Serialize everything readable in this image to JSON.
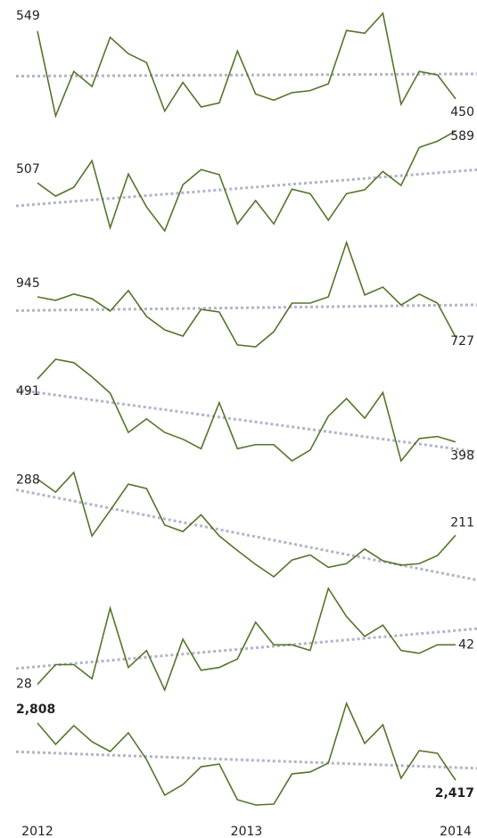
{
  "chart_data": [
    {
      "type": "line",
      "color": "#55752b",
      "trendline": true,
      "values": [
        549,
        425,
        490,
        468,
        540,
        516,
        503,
        432,
        474,
        438,
        444,
        520,
        457,
        448,
        459,
        462,
        472,
        550,
        546,
        575,
        442,
        490,
        485,
        450
      ]
    },
    {
      "type": "line",
      "color": "#55752b",
      "trendline": true,
      "values": [
        507,
        486,
        500,
        542,
        436,
        521,
        469,
        431,
        504,
        528,
        520,
        442,
        479,
        442,
        497,
        490,
        448,
        490,
        496,
        525,
        503,
        563,
        573,
        589
      ]
    },
    {
      "type": "line",
      "color": "#55752b",
      "trendline": true,
      "values": [
        945,
        926,
        960,
        935,
        868,
        979,
        839,
        766,
        732,
        877,
        863,
        684,
        674,
        756,
        911,
        911,
        945,
        1240,
        955,
        998,
        901,
        960,
        911,
        727
      ]
    },
    {
      "type": "line",
      "color": "#55752b",
      "trendline": true,
      "values": [
        491,
        520,
        515,
        494,
        470,
        412,
        432,
        412,
        402,
        388,
        456,
        388,
        394,
        394,
        370,
        386,
        436,
        462,
        433,
        471,
        370,
        403,
        406,
        398
      ]
    },
    {
      "type": "line",
      "color": "#55752b",
      "trendline": true,
      "values": [
        288,
        270,
        297,
        210,
        245,
        281,
        275,
        225,
        216,
        239,
        210,
        190,
        171,
        154,
        177,
        184,
        167,
        172,
        192,
        176,
        170,
        172,
        183,
        211
      ]
    },
    {
      "type": "line",
      "color": "#55752b",
      "trendline": true,
      "values": [
        28,
        35,
        35,
        30,
        55,
        34,
        40,
        26,
        44,
        33,
        34,
        37,
        50,
        42,
        42,
        40,
        62,
        52,
        45,
        49,
        40,
        39,
        42,
        42
      ]
    },
    {
      "type": "line",
      "color": "#55752b",
      "trendline": true,
      "bold_labels": true,
      "values": [
        2808,
        2662,
        2790,
        2680,
        2613,
        2741,
        2558,
        2314,
        2387,
        2509,
        2527,
        2283,
        2247,
        2253,
        2460,
        2473,
        2534,
        2942,
        2668,
        2796,
        2430,
        2619,
        2601,
        2417
      ],
      "value_labels": [
        "2,808",
        null,
        null,
        null,
        null,
        null,
        null,
        null,
        null,
        null,
        null,
        null,
        null,
        null,
        null,
        null,
        null,
        null,
        null,
        null,
        null,
        null,
        null,
        "2,417"
      ]
    }
  ],
  "x_axis": {
    "labels": [
      "2012",
      "2013",
      "2014"
    ]
  }
}
